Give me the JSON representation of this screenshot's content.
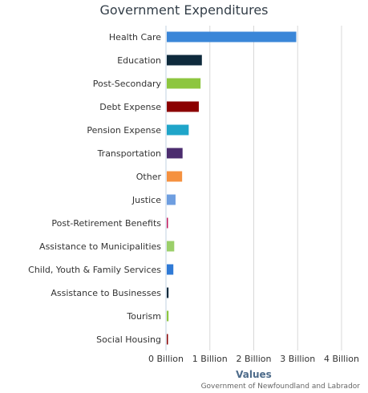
{
  "chart_data": {
    "type": "bar",
    "orientation": "horizontal",
    "title": "Government Expenditures",
    "xlabel": "Values",
    "credit": "Government of Newfoundland and Labrador",
    "categories": [
      "Health Care",
      "Education",
      "Post-Secondary",
      "Debt Expense",
      "Pension Expense",
      "Transportation",
      "Other",
      "Justice",
      "Post-Retirement Benefits",
      "Assistance to Municipalities",
      "Child, Youth & Family Services",
      "Assistance to Businesses",
      "Tourism",
      "Social Housing"
    ],
    "values": [
      2.95,
      0.8,
      0.77,
      0.73,
      0.5,
      0.36,
      0.35,
      0.2,
      0.01,
      0.17,
      0.15,
      0.04,
      0.04,
      0.01
    ],
    "colors": [
      "#3a86d8",
      "#0e2a3c",
      "#8dc63f",
      "#8b0000",
      "#1fa5c9",
      "#4b2c6e",
      "#f5913f",
      "#6e9ee0",
      "#c2185b",
      "#9bcf6a",
      "#2f7ad6",
      "#0e2a3c",
      "#8dc63f",
      "#8b0000"
    ],
    "xlim": [
      0,
      4
    ],
    "ticks": [
      0,
      1,
      2,
      3,
      4
    ],
    "tick_labels": [
      "0 Billion",
      "1 Billion",
      "2 Billion",
      "3 Billion",
      "4 Billion"
    ],
    "grid": true
  }
}
